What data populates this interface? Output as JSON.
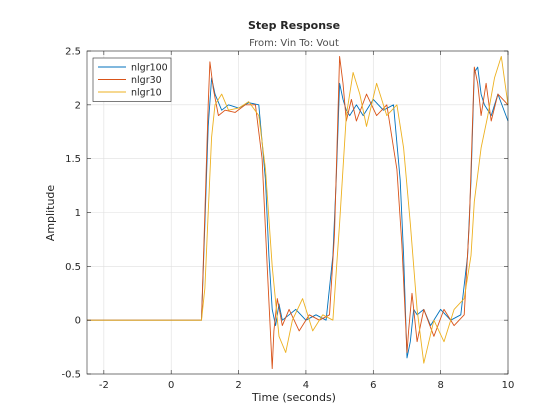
{
  "chart_data": {
    "type": "line",
    "title": "Step Response",
    "subtitle": "From: Vin  To: Vout",
    "xlabel": "Time (seconds)",
    "ylabel": "Amplitude",
    "xlim": [
      -2.5,
      10
    ],
    "ylim": [
      -0.5,
      2.5
    ],
    "xticks": [
      -2,
      0,
      2,
      4,
      6,
      8,
      10
    ],
    "yticks": [
      -0.5,
      0,
      0.5,
      1,
      1.5,
      2,
      2.5
    ],
    "xtick_labels": [
      "-2",
      "0",
      "2",
      "4",
      "6",
      "8",
      "10"
    ],
    "ytick_labels": [
      "-0.5",
      "0",
      "0.5",
      "1",
      "1.5",
      "2",
      "2.5"
    ],
    "grid": true,
    "legend_position": "top-left",
    "series": [
      {
        "name": "nlgr100",
        "color": "#0072BD",
        "x": [
          -2.5,
          0.85,
          0.9,
          1.0,
          1.1,
          1.2,
          1.3,
          1.5,
          1.7,
          2.0,
          2.3,
          2.6,
          2.8,
          2.9,
          3.0,
          3.1,
          3.2,
          3.3,
          3.5,
          3.7,
          4.0,
          4.3,
          4.6,
          4.8,
          4.9,
          5.0,
          5.1,
          5.2,
          5.3,
          5.5,
          5.7,
          6.0,
          6.3,
          6.6,
          6.8,
          6.9,
          7.0,
          7.1,
          7.2,
          7.3,
          7.5,
          7.7,
          8.0,
          8.3,
          8.6,
          8.8,
          8.9,
          9.0,
          9.1,
          9.2,
          9.3,
          9.5,
          9.7,
          10.0
        ],
        "y": [
          0,
          0,
          0.0,
          0.9,
          1.8,
          2.25,
          2.1,
          1.95,
          2.0,
          1.97,
          2.02,
          2.0,
          1.3,
          0.6,
          0.1,
          -0.05,
          0.15,
          0.0,
          0.05,
          0.1,
          0.0,
          0.05,
          0.0,
          0.6,
          1.3,
          2.2,
          2.05,
          1.95,
          1.9,
          2.0,
          1.9,
          2.05,
          1.95,
          2.0,
          1.3,
          0.6,
          -0.35,
          -0.2,
          0.1,
          0.05,
          0.1,
          -0.05,
          0.1,
          0.0,
          0.05,
          0.6,
          1.3,
          2.3,
          2.35,
          2.1,
          2.0,
          1.9,
          2.1,
          1.85
        ]
      },
      {
        "name": "nlgr30",
        "color": "#D95319",
        "x": [
          -2.5,
          0.85,
          0.9,
          1.0,
          1.1,
          1.15,
          1.25,
          1.4,
          1.6,
          1.9,
          2.2,
          2.5,
          2.7,
          2.85,
          3.0,
          3.05,
          3.15,
          3.3,
          3.5,
          3.8,
          4.1,
          4.4,
          4.7,
          4.85,
          5.0,
          5.1,
          5.2,
          5.35,
          5.5,
          5.8,
          6.1,
          6.4,
          6.7,
          6.85,
          7.0,
          7.05,
          7.15,
          7.3,
          7.5,
          7.8,
          8.1,
          8.4,
          8.7,
          8.85,
          9.0,
          9.1,
          9.2,
          9.35,
          9.5,
          9.7,
          10.0
        ],
        "y": [
          0,
          0,
          0.0,
          1.0,
          2.0,
          2.4,
          2.15,
          1.9,
          1.95,
          1.93,
          2.0,
          2.0,
          1.5,
          0.5,
          -0.45,
          -0.1,
          0.2,
          -0.05,
          0.1,
          -0.1,
          0.05,
          0.0,
          0.05,
          0.8,
          2.45,
          2.2,
          1.85,
          2.05,
          1.85,
          2.1,
          1.9,
          2.0,
          1.4,
          0.7,
          -0.3,
          -0.1,
          0.25,
          -0.2,
          0.1,
          -0.15,
          0.1,
          -0.05,
          0.05,
          0.9,
          2.35,
          2.2,
          1.9,
          2.2,
          1.85,
          2.1,
          2.0
        ]
      },
      {
        "name": "nlgr10",
        "color": "#EDB120",
        "x": [
          -2.5,
          0.9,
          1.0,
          1.1,
          1.2,
          1.3,
          1.5,
          1.7,
          2.0,
          2.3,
          2.6,
          2.8,
          3.0,
          3.2,
          3.4,
          3.6,
          3.9,
          4.2,
          4.5,
          4.8,
          5.0,
          5.2,
          5.4,
          5.6,
          5.8,
          6.1,
          6.4,
          6.7,
          6.9,
          7.1,
          7.3,
          7.5,
          7.8,
          8.1,
          8.4,
          8.7,
          8.9,
          9.0,
          9.2,
          9.4,
          9.6,
          9.8,
          10.0
        ],
        "y": [
          0,
          0,
          0.3,
          1.0,
          1.7,
          2.0,
          2.1,
          1.95,
          1.97,
          2.03,
          1.9,
          1.4,
          0.5,
          -0.15,
          -0.3,
          0.0,
          0.2,
          -0.1,
          0.05,
          0.0,
          0.9,
          1.9,
          2.3,
          2.1,
          1.8,
          2.2,
          1.9,
          2.0,
          1.6,
          0.9,
          0.1,
          -0.4,
          0.0,
          -0.2,
          0.1,
          0.2,
          0.6,
          1.1,
          1.6,
          1.9,
          2.25,
          2.45,
          2.0
        ]
      }
    ]
  }
}
